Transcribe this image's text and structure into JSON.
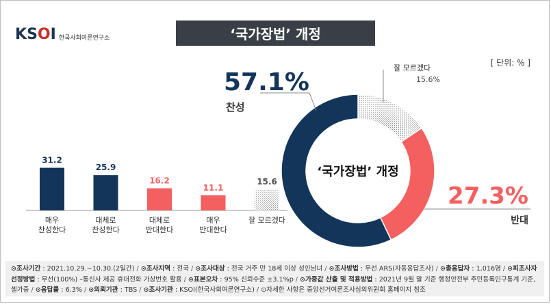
{
  "header": {
    "logo_text": "KSOI",
    "logo_sub": "한국사회여론연구소",
    "title": "‘국가장법’ 개정",
    "unit": "[ 단위: % ]"
  },
  "chart_data": [
    {
      "type": "bar",
      "categories": [
        "매우\n찬성한다",
        "대체로\n찬성한다",
        "대체로\n반대한다",
        "매우\n반대한다",
        "잘 모르겠다"
      ],
      "values": [
        31.2,
        25.9,
        16.2,
        11.1,
        15.6
      ],
      "value_labels": [
        "31.2",
        "25.9",
        "16.2",
        "11.1",
        "15.6"
      ],
      "colors": [
        "#14355a",
        "#14355a",
        "#f45f5f",
        "#f45f5f",
        "#bfbfbf"
      ]
    },
    {
      "type": "pie",
      "title": "‘국가장법’ 개정",
      "slices": [
        {
          "label": "찬성",
          "value": 57.1,
          "value_text": "57.1%",
          "color": "#14355a"
        },
        {
          "label": "반대",
          "value": 27.3,
          "value_text": "27.3%",
          "color": "#f45f5f"
        },
        {
          "label": "잘 모르겠다",
          "value": 15.6,
          "value_text": "15.6%",
          "color": "#bfbfbf"
        }
      ]
    }
  ],
  "footer": {
    "items": [
      {
        "key": "조사기간",
        "val": "2021.10.29.~10.30.(2일간)"
      },
      {
        "key": "조사지역",
        "val": "전국"
      },
      {
        "key": "조사대상",
        "val": "전국 거주 만 18세 이상 성인남녀"
      },
      {
        "key": "조사방법",
        "val": "무선 ARS(자동응답조사)"
      },
      {
        "key": "총응답자",
        "val": "1,016명"
      },
      {
        "key": "피조사자선정방법",
        "val": "무선(100%) –통신사 제공 휴대전화 가상번호 활용"
      },
      {
        "key": "표본오차",
        "val": "95% 신뢰수준 ±3.1%p"
      },
      {
        "key": "가중값 산출 및 적용방법",
        "val": "2021년 9월 말 기준 행정안전부 주민등록인구통계 기준, 셀가중"
      },
      {
        "key": "응답률",
        "val": "6.3%"
      },
      {
        "key": "의뢰기관",
        "val": "TBS"
      },
      {
        "key": "조사기관",
        "val": "KSOI(한국사회여론연구소)"
      }
    ],
    "note": "자세한 사항은 중앙선거여론조사심의위원회 홈페이지 참조"
  }
}
